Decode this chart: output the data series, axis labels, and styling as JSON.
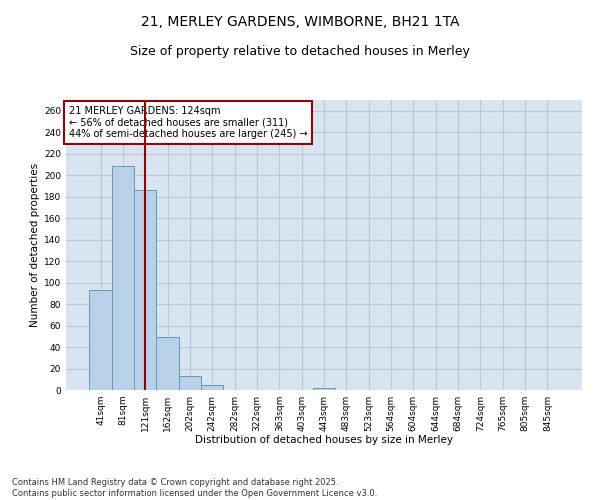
{
  "title_line1": "21, MERLEY GARDENS, WIMBORNE, BH21 1TA",
  "title_line2": "Size of property relative to detached houses in Merley",
  "xlabel": "Distribution of detached houses by size in Merley",
  "ylabel": "Number of detached properties",
  "categories": [
    "41sqm",
    "81sqm",
    "121sqm",
    "162sqm",
    "202sqm",
    "242sqm",
    "282sqm",
    "322sqm",
    "363sqm",
    "403sqm",
    "443sqm",
    "483sqm",
    "523sqm",
    "564sqm",
    "604sqm",
    "644sqm",
    "684sqm",
    "724sqm",
    "765sqm",
    "805sqm",
    "845sqm"
  ],
  "values": [
    93,
    209,
    186,
    49,
    13,
    5,
    0,
    0,
    0,
    0,
    2,
    0,
    0,
    0,
    0,
    0,
    0,
    0,
    0,
    0,
    0
  ],
  "bar_color": "#b8d0e8",
  "bar_edge_color": "#6699bb",
  "vline_x_index": 2,
  "vline_color": "#990000",
  "annotation_text": "21 MERLEY GARDENS: 124sqm\n← 56% of detached houses are smaller (311)\n44% of semi-detached houses are larger (245) →",
  "annotation_box_color": "#990000",
  "annotation_bg_color": "#ffffff",
  "ylim": [
    0,
    270
  ],
  "yticks": [
    0,
    20,
    40,
    60,
    80,
    100,
    120,
    140,
    160,
    180,
    200,
    220,
    240,
    260
  ],
  "grid_color": "#b8c8dc",
  "bg_color": "#d8e4f0",
  "footer": "Contains HM Land Registry data © Crown copyright and database right 2025.\nContains public sector information licensed under the Open Government Licence v3.0.",
  "title_fontsize": 10,
  "subtitle_fontsize": 9,
  "label_fontsize": 7.5,
  "tick_fontsize": 6.5,
  "footer_fontsize": 6,
  "ann_fontsize": 7
}
